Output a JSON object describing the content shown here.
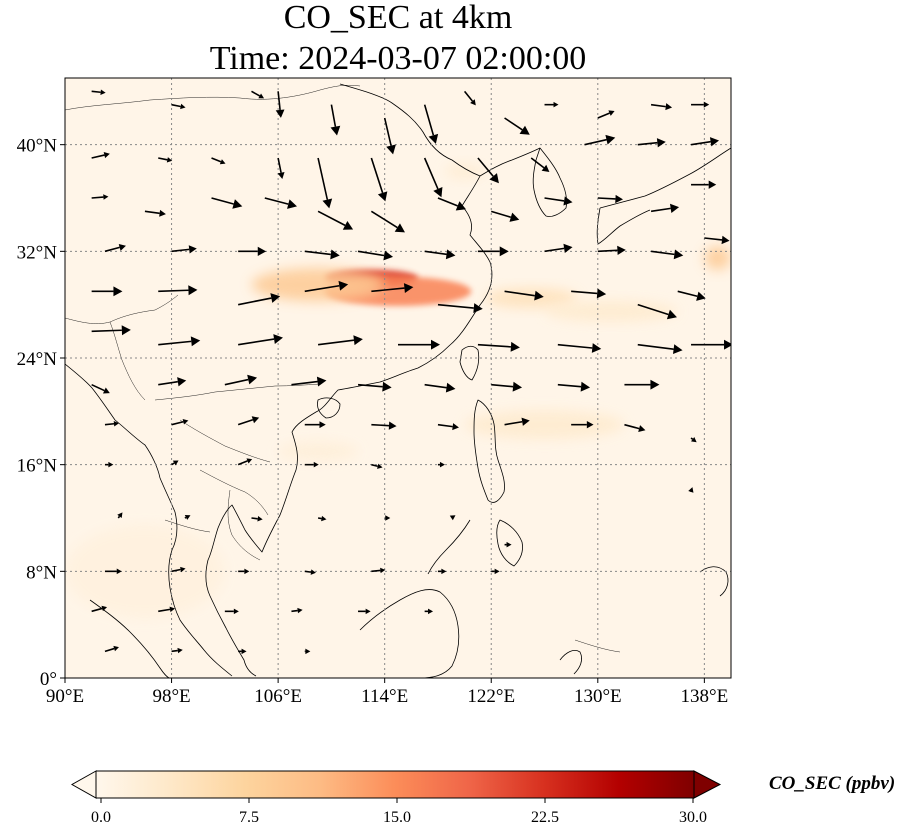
{
  "title_line1": "CO_SEC at 4km",
  "title_line2": "Time: 2024-03-07 02:00:00",
  "map": {
    "lon_range": [
      90,
      140
    ],
    "lat_range": [
      0,
      45
    ],
    "projection": "plate-carree",
    "gridlines": "dotted",
    "features": [
      "coastlines",
      "country borders",
      "wind vectors"
    ],
    "lon_ticks": [
      {
        "value": 90,
        "label": "90°E"
      },
      {
        "value": 98,
        "label": "98°E"
      },
      {
        "value": 106,
        "label": "106°E"
      },
      {
        "value": 114,
        "label": "114°E"
      },
      {
        "value": 122,
        "label": "122°E"
      },
      {
        "value": 130,
        "label": "130°E"
      },
      {
        "value": 138,
        "label": "138°E"
      }
    ],
    "lat_ticks": [
      {
        "value": 0,
        "label": "0°"
      },
      {
        "value": 8,
        "label": "8°N"
      },
      {
        "value": 16,
        "label": "16°N"
      },
      {
        "value": 24,
        "label": "24°N"
      },
      {
        "value": 32,
        "label": "32°N"
      },
      {
        "value": 40,
        "label": "40°N"
      }
    ],
    "plumes": [
      {
        "lon": 113,
        "lat": 30,
        "value": 22,
        "width_deg": 7,
        "height_deg": 1.3
      },
      {
        "lon": 115,
        "lat": 29,
        "value": 16,
        "width_deg": 11,
        "height_deg": 2.2
      },
      {
        "lon": 109,
        "lat": 29.5,
        "value": 9,
        "width_deg": 10,
        "height_deg": 2.5
      },
      {
        "lon": 125,
        "lat": 28.5,
        "value": 5,
        "width_deg": 7,
        "height_deg": 1.5
      },
      {
        "lon": 131,
        "lat": 27.5,
        "value": 3,
        "width_deg": 10,
        "height_deg": 1.6
      },
      {
        "lon": 139,
        "lat": 31.5,
        "value": 9,
        "width_deg": 2,
        "height_deg": 1.8
      },
      {
        "lon": 126,
        "lat": 19,
        "value": 3,
        "width_deg": 12,
        "height_deg": 2.2
      },
      {
        "lon": 109,
        "lat": 17,
        "value": 2,
        "width_deg": 6,
        "height_deg": 1.5
      },
      {
        "lon": 120,
        "lat": 38,
        "value": 2.5,
        "width_deg": 3,
        "height_deg": 1.2
      },
      {
        "lon": 96,
        "lat": 8,
        "value": 1.5,
        "width_deg": 12,
        "height_deg": 7
      }
    ],
    "wind_vectors": [
      {
        "lon": 92,
        "lat": 44,
        "u": 1,
        "v": -0.1
      },
      {
        "lon": 98,
        "lat": 43,
        "u": 1,
        "v": -0.2
      },
      {
        "lon": 104,
        "lat": 44,
        "u": 0.9,
        "v": -0.5
      },
      {
        "lon": 106,
        "lat": 44,
        "u": 0.2,
        "v": -1.9
      },
      {
        "lon": 110,
        "lat": 43,
        "u": 0.4,
        "v": -2.2
      },
      {
        "lon": 114,
        "lat": 42,
        "u": 0.6,
        "v": -2.6
      },
      {
        "lon": 117,
        "lat": 43,
        "u": 0.8,
        "v": -2.8
      },
      {
        "lon": 120,
        "lat": 44,
        "u": 0.8,
        "v": -1.0
      },
      {
        "lon": 123,
        "lat": 42,
        "u": 1.8,
        "v": -1.2
      },
      {
        "lon": 126,
        "lat": 43,
        "u": 1,
        "v": 0
      },
      {
        "lon": 130,
        "lat": 42,
        "u": 1.2,
        "v": 0.5
      },
      {
        "lon": 134,
        "lat": 43,
        "u": 1.5,
        "v": -0.2
      },
      {
        "lon": 137,
        "lat": 43,
        "u": 1.3,
        "v": 0
      },
      {
        "lon": 92,
        "lat": 39,
        "u": 1.3,
        "v": 0.3
      },
      {
        "lon": 97,
        "lat": 39,
        "u": 1,
        "v": -0.2
      },
      {
        "lon": 101,
        "lat": 39,
        "u": 1,
        "v": -0.4
      },
      {
        "lon": 106,
        "lat": 39,
        "u": 0.3,
        "v": -1.5
      },
      {
        "lon": 109,
        "lat": 39,
        "u": 0.8,
        "v": -3.6
      },
      {
        "lon": 113,
        "lat": 39,
        "u": 1.0,
        "v": -3.1
      },
      {
        "lon": 117,
        "lat": 39,
        "u": 1.2,
        "v": -2.8
      },
      {
        "lon": 121,
        "lat": 39,
        "u": 1.5,
        "v": -1.8
      },
      {
        "lon": 125,
        "lat": 39,
        "u": 1.3,
        "v": -1.0
      },
      {
        "lon": 129,
        "lat": 40,
        "u": 2.2,
        "v": 0.5
      },
      {
        "lon": 133,
        "lat": 40,
        "u": 2.0,
        "v": 0.2
      },
      {
        "lon": 137,
        "lat": 40,
        "u": 2.0,
        "v": 0.3
      },
      {
        "lon": 92,
        "lat": 36,
        "u": 1.2,
        "v": 0.1
      },
      {
        "lon": 96,
        "lat": 35,
        "u": 1.5,
        "v": -0.2
      },
      {
        "lon": 101,
        "lat": 36,
        "u": 2.2,
        "v": -0.6
      },
      {
        "lon": 105,
        "lat": 36,
        "u": 2.3,
        "v": -0.6
      },
      {
        "lon": 109,
        "lat": 35,
        "u": 2.5,
        "v": -1.3
      },
      {
        "lon": 113,
        "lat": 35,
        "u": 2.4,
        "v": -1.5
      },
      {
        "lon": 118,
        "lat": 36,
        "u": 2.0,
        "v": -0.8
      },
      {
        "lon": 122,
        "lat": 35,
        "u": 2.0,
        "v": -0.6
      },
      {
        "lon": 126,
        "lat": 36,
        "u": 2.0,
        "v": -0.3
      },
      {
        "lon": 130,
        "lat": 36,
        "u": 1.8,
        "v": -0.1
      },
      {
        "lon": 134,
        "lat": 35,
        "u": 2.0,
        "v": 0.3
      },
      {
        "lon": 137,
        "lat": 37,
        "u": 1.8,
        "v": 0
      },
      {
        "lon": 93,
        "lat": 32,
        "u": 1.5,
        "v": 0.4
      },
      {
        "lon": 98,
        "lat": 32,
        "u": 1.8,
        "v": 0.2
      },
      {
        "lon": 103,
        "lat": 32,
        "u": 2.0,
        "v": 0
      },
      {
        "lon": 108,
        "lat": 32,
        "u": 2.5,
        "v": -0.3
      },
      {
        "lon": 112,
        "lat": 32,
        "u": 2.5,
        "v": -0.4
      },
      {
        "lon": 117,
        "lat": 32,
        "u": 2.2,
        "v": -0.3
      },
      {
        "lon": 121,
        "lat": 32,
        "u": 2.2,
        "v": 0
      },
      {
        "lon": 126,
        "lat": 32,
        "u": 2.0,
        "v": 0.3
      },
      {
        "lon": 130,
        "lat": 32,
        "u": 2.0,
        "v": 0.1
      },
      {
        "lon": 134,
        "lat": 32,
        "u": 2.3,
        "v": -0.3
      },
      {
        "lon": 138,
        "lat": 33,
        "u": 1.8,
        "v": -0.2
      },
      {
        "lon": 92,
        "lat": 29,
        "u": 2.2,
        "v": 0
      },
      {
        "lon": 97,
        "lat": 29,
        "u": 2.8,
        "v": 0.1
      },
      {
        "lon": 103,
        "lat": 28,
        "u": 3.0,
        "v": 0.6
      },
      {
        "lon": 108,
        "lat": 29,
        "u": 3.1,
        "v": 0.5
      },
      {
        "lon": 113,
        "lat": 29,
        "u": 3.0,
        "v": 0.3
      },
      {
        "lon": 118,
        "lat": 28,
        "u": 3.2,
        "v": -0.3
      },
      {
        "lon": 123,
        "lat": 29,
        "u": 2.8,
        "v": -0.4
      },
      {
        "lon": 128,
        "lat": 29,
        "u": 2.5,
        "v": -0.2
      },
      {
        "lon": 133,
        "lat": 28,
        "u": 2.8,
        "v": -0.9
      },
      {
        "lon": 136,
        "lat": 29,
        "u": 2.0,
        "v": -0.5
      },
      {
        "lon": 92,
        "lat": 26,
        "u": 2.8,
        "v": 0.1
      },
      {
        "lon": 97,
        "lat": 25,
        "u": 3.0,
        "v": 0.3
      },
      {
        "lon": 103,
        "lat": 25,
        "u": 3.2,
        "v": 0.5
      },
      {
        "lon": 109,
        "lat": 25,
        "u": 3.2,
        "v": 0.4
      },
      {
        "lon": 115,
        "lat": 25,
        "u": 3.0,
        "v": 0
      },
      {
        "lon": 121,
        "lat": 25,
        "u": 3.0,
        "v": -0.2
      },
      {
        "lon": 127,
        "lat": 25,
        "u": 3.1,
        "v": -0.3
      },
      {
        "lon": 133,
        "lat": 25,
        "u": 3.2,
        "v": -0.4
      },
      {
        "lon": 137,
        "lat": 25,
        "u": 3.0,
        "v": 0
      },
      {
        "lon": 92,
        "lat": 22,
        "u": 1.3,
        "v": -0.6
      },
      {
        "lon": 97,
        "lat": 22,
        "u": 2.0,
        "v": 0.3
      },
      {
        "lon": 102,
        "lat": 22,
        "u": 2.3,
        "v": 0.5
      },
      {
        "lon": 107,
        "lat": 22,
        "u": 2.5,
        "v": 0.3
      },
      {
        "lon": 112,
        "lat": 22,
        "u": 2.4,
        "v": -0.2
      },
      {
        "lon": 117,
        "lat": 22,
        "u": 2.2,
        "v": -0.3
      },
      {
        "lon": 122,
        "lat": 22,
        "u": 2.2,
        "v": -0.2
      },
      {
        "lon": 127,
        "lat": 22,
        "u": 2.3,
        "v": -0.2
      },
      {
        "lon": 132,
        "lat": 22,
        "u": 2.5,
        "v": 0
      },
      {
        "lon": 93,
        "lat": 19,
        "u": 1.0,
        "v": 0.1
      },
      {
        "lon": 98,
        "lat": 19,
        "u": 1.2,
        "v": 0.3
      },
      {
        "lon": 103,
        "lat": 19,
        "u": 1.5,
        "v": 0.5
      },
      {
        "lon": 108,
        "lat": 19,
        "u": 1.5,
        "v": 0
      },
      {
        "lon": 113,
        "lat": 19,
        "u": 1.8,
        "v": -0.1
      },
      {
        "lon": 118,
        "lat": 19,
        "u": 1.5,
        "v": -0.2
      },
      {
        "lon": 123,
        "lat": 19,
        "u": 1.8,
        "v": 0.3
      },
      {
        "lon": 128,
        "lat": 19,
        "u": 1.6,
        "v": 0
      },
      {
        "lon": 132,
        "lat": 19,
        "u": 1.5,
        "v": -0.4
      },
      {
        "lon": 137,
        "lat": 18,
        "u": 0.4,
        "v": -0.3
      },
      {
        "lon": 93,
        "lat": 16,
        "u": 0.6,
        "v": 0
      },
      {
        "lon": 98,
        "lat": 16,
        "u": 0.5,
        "v": 0.3
      },
      {
        "lon": 103,
        "lat": 16,
        "u": 1.0,
        "v": 0.4
      },
      {
        "lon": 108,
        "lat": 16,
        "u": 1.0,
        "v": 0
      },
      {
        "lon": 113,
        "lat": 16,
        "u": 0.8,
        "v": -0.2
      },
      {
        "lon": 118,
        "lat": 16,
        "u": 0.5,
        "v": 0
      },
      {
        "lon": 94,
        "lat": 12,
        "u": 0.3,
        "v": 0.4
      },
      {
        "lon": 99,
        "lat": 12,
        "u": 0.4,
        "v": 0.2
      },
      {
        "lon": 104,
        "lat": 12,
        "u": 0.8,
        "v": -0.1
      },
      {
        "lon": 109,
        "lat": 12,
        "u": 0.6,
        "v": -0.1
      },
      {
        "lon": 114,
        "lat": 12,
        "u": 0.4,
        "v": 0
      },
      {
        "lon": 119,
        "lat": 12,
        "u": 0.3,
        "v": 0.2
      },
      {
        "lon": 123,
        "lat": 10,
        "u": 0.5,
        "v": 0
      },
      {
        "lon": 137,
        "lat": 14,
        "u": 0.1,
        "v": 0.3
      },
      {
        "lon": 93,
        "lat": 8,
        "u": 1.2,
        "v": 0
      },
      {
        "lon": 98,
        "lat": 8,
        "u": 1.0,
        "v": 0.2
      },
      {
        "lon": 103,
        "lat": 8,
        "u": 0.8,
        "v": 0
      },
      {
        "lon": 108,
        "lat": 8,
        "u": 0.8,
        "v": -0.1
      },
      {
        "lon": 113,
        "lat": 8,
        "u": 1.0,
        "v": 0.1
      },
      {
        "lon": 118,
        "lat": 8,
        "u": 0.6,
        "v": 0
      },
      {
        "lon": 122,
        "lat": 8,
        "u": 0.6,
        "v": 0
      },
      {
        "lon": 92,
        "lat": 5,
        "u": 1.1,
        "v": 0.3
      },
      {
        "lon": 97,
        "lat": 5,
        "u": 1.2,
        "v": 0.2
      },
      {
        "lon": 102,
        "lat": 5,
        "u": 1.0,
        "v": 0
      },
      {
        "lon": 107,
        "lat": 5,
        "u": 0.8,
        "v": 0.1
      },
      {
        "lon": 112,
        "lat": 5,
        "u": 0.9,
        "v": 0
      },
      {
        "lon": 117,
        "lat": 5,
        "u": 0.6,
        "v": 0
      },
      {
        "lon": 93,
        "lat": 2,
        "u": 1.0,
        "v": 0.3
      },
      {
        "lon": 98,
        "lat": 2,
        "u": 0.8,
        "v": 0.1
      },
      {
        "lon": 103,
        "lat": 2,
        "u": 0.6,
        "v": 0
      },
      {
        "lon": 108,
        "lat": 2,
        "u": 0.4,
        "v": 0
      }
    ]
  },
  "colorbar": {
    "label": "CO_SEC (ppbv)",
    "min": 0,
    "max": 30,
    "extend": "both",
    "colormap": "OrRd",
    "stops": [
      "#fff7ec",
      "#fee8c8",
      "#fdd49e",
      "#fdbb84",
      "#fc8d59",
      "#ef6548",
      "#d7301f",
      "#b30000",
      "#7f0000"
    ],
    "ticks": [
      {
        "value": 0,
        "label": "0.0"
      },
      {
        "value": 7.5,
        "label": "7.5"
      },
      {
        "value": 15,
        "label": "15.0"
      },
      {
        "value": 22.5,
        "label": "22.5"
      },
      {
        "value": 30,
        "label": "30.0"
      }
    ]
  },
  "colors": {
    "background": "#fff5e8",
    "coastline": "#000000",
    "gridline": "#888888",
    "arrow": "#000000"
  }
}
